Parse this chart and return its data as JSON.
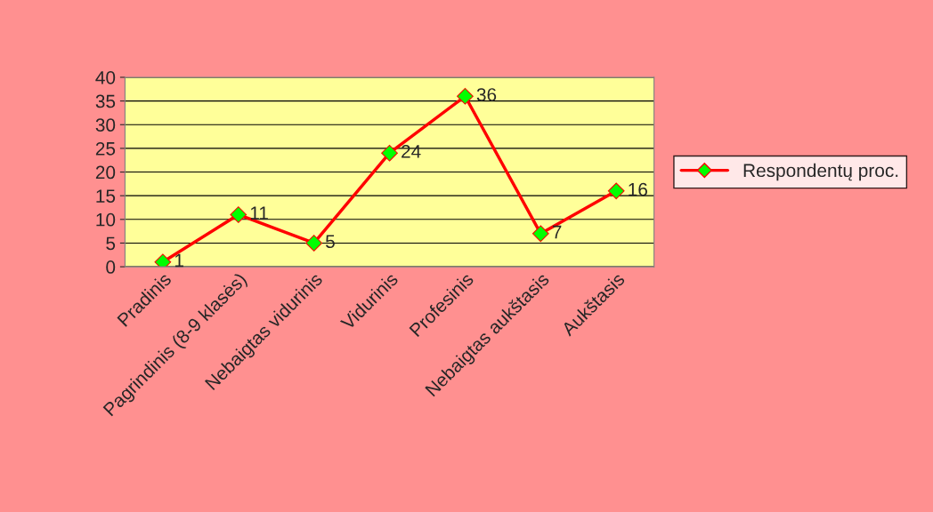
{
  "chart_data": {
    "type": "line",
    "categories": [
      "Pradinis",
      "Pagrindinis (8-9 klasės)",
      "Nebaigtas vidurinis",
      "Vidurinis",
      "Profesinis",
      "Nebaigtas aukštasis",
      "Aukštasis"
    ],
    "series": [
      {
        "name": "Respondentų proc.",
        "color": "#ff0000",
        "values": [
          1,
          11,
          5,
          24,
          36,
          7,
          16
        ]
      }
    ],
    "ylim": [
      0,
      40
    ],
    "yticks": [
      0,
      5,
      10,
      15,
      20,
      25,
      30,
      35,
      40
    ],
    "grid": "y",
    "legend": "right",
    "marker": "diamond",
    "line_style": "solid",
    "data_labels": true
  }
}
